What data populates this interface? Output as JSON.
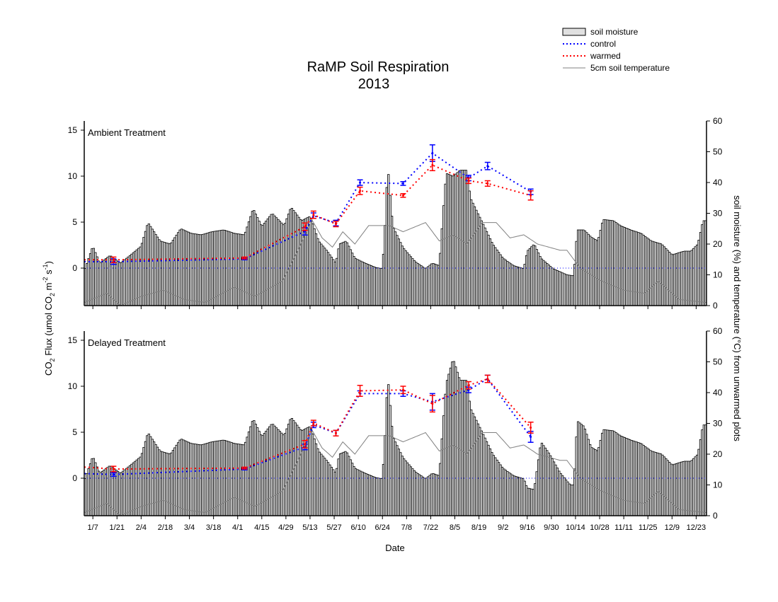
{
  "chart_data": [
    {
      "type": "bar+line",
      "panel_label": "Ambient Treatment",
      "xlim": [
        2,
        363
      ],
      "ylim_left": [
        -4.1,
        16
      ],
      "ylim_right": [
        0,
        60
      ],
      "yticks_left": [
        0,
        5,
        10,
        15
      ],
      "yticks_right": [
        0,
        10,
        20,
        30,
        40,
        50,
        60
      ],
      "flux_days": [
        3,
        19,
        95,
        130,
        135,
        148,
        162,
        187,
        204,
        225,
        236,
        261
      ],
      "series": [
        {
          "name": "control",
          "values": [
            0.7,
            0.7,
            1.0,
            4.0,
            5.7,
            4.9,
            9.3,
            9.2,
            12.5,
            9.8,
            11.1,
            8.3
          ],
          "err": [
            0.2,
            0.3,
            0.1,
            0.4,
            0.3,
            0.3,
            0.3,
            0.2,
            0.9,
            0.3,
            0.4,
            0.3
          ]
        },
        {
          "name": "warmed",
          "values": [
            0.9,
            0.9,
            1.1,
            4.5,
            5.8,
            4.8,
            8.4,
            7.9,
            11.2,
            9.5,
            9.2,
            7.9
          ],
          "err": [
            0.2,
            0.3,
            0.1,
            0.4,
            0.4,
            0.3,
            0.4,
            0.2,
            0.6,
            0.3,
            0.3,
            0.5
          ]
        }
      ],
      "soil_moisture": [
        [
          2,
          11.3
        ],
        [
          7,
          19.3
        ],
        [
          11,
          13.8
        ],
        [
          17,
          16.3
        ],
        [
          23,
          13.8
        ],
        [
          29,
          16.5
        ],
        [
          35,
          19.3
        ],
        [
          39,
          27
        ],
        [
          46,
          21
        ],
        [
          52,
          20
        ],
        [
          58,
          25
        ],
        [
          64,
          23.5
        ],
        [
          70,
          23
        ],
        [
          76,
          24
        ],
        [
          83,
          24.6
        ],
        [
          89,
          23.5
        ],
        [
          95,
          23
        ],
        [
          100,
          31.5
        ],
        [
          105,
          25.7
        ],
        [
          111,
          30
        ],
        [
          118,
          26
        ],
        [
          122,
          32
        ],
        [
          128,
          27.6
        ],
        [
          133,
          29
        ],
        [
          138,
          21
        ],
        [
          143,
          17.7
        ],
        [
          148,
          13.8
        ],
        [
          150,
          20
        ],
        [
          154,
          21
        ],
        [
          159,
          15.4
        ],
        [
          165,
          13.8
        ],
        [
          171,
          12.4
        ],
        [
          175,
          12
        ],
        [
          177,
          30.8
        ],
        [
          178,
          46
        ],
        [
          181,
          25.7
        ],
        [
          187,
          18.8
        ],
        [
          194,
          14.3
        ],
        [
          200,
          12
        ],
        [
          204,
          13.8
        ],
        [
          208,
          13
        ],
        [
          210,
          29
        ],
        [
          212,
          43
        ],
        [
          216,
          42
        ],
        [
          220,
          44
        ],
        [
          224,
          44
        ],
        [
          226,
          35
        ],
        [
          233,
          27
        ],
        [
          239,
          20
        ],
        [
          245,
          15.4
        ],
        [
          251,
          13
        ],
        [
          257,
          12
        ],
        [
          259,
          17.7
        ],
        [
          263,
          20
        ],
        [
          267,
          15.4
        ],
        [
          274,
          12
        ],
        [
          282,
          10
        ],
        [
          286,
          9.7
        ],
        [
          288,
          24.6
        ],
        [
          292,
          24.6
        ],
        [
          296,
          22.3
        ],
        [
          300,
          21
        ],
        [
          303,
          28
        ],
        [
          309,
          27.6
        ],
        [
          313,
          26
        ],
        [
          319,
          24.6
        ],
        [
          325,
          23.5
        ],
        [
          331,
          21
        ],
        [
          337,
          20
        ],
        [
          343,
          16.5
        ],
        [
          350,
          17.7
        ],
        [
          354,
          17.7
        ],
        [
          358,
          20
        ],
        [
          361,
          27.6
        ]
      ],
      "soil_temperature": [
        [
          2,
          1
        ],
        [
          15,
          4
        ],
        [
          23,
          0
        ],
        [
          35,
          3
        ],
        [
          48,
          5
        ],
        [
          60,
          2
        ],
        [
          72,
          1
        ],
        [
          89,
          6
        ],
        [
          101,
          3
        ],
        [
          117,
          8
        ],
        [
          126,
          18
        ],
        [
          134,
          28
        ],
        [
          140,
          22
        ],
        [
          146,
          19
        ],
        [
          152,
          24
        ],
        [
          159,
          20
        ],
        [
          167,
          26
        ],
        [
          179,
          26
        ],
        [
          187,
          24
        ],
        [
          200,
          27
        ],
        [
          208,
          21
        ],
        [
          216,
          23
        ],
        [
          224,
          20
        ],
        [
          233,
          27
        ],
        [
          241,
          27
        ],
        [
          249,
          22
        ],
        [
          257,
          23
        ],
        [
          265,
          20
        ],
        [
          278,
          18
        ],
        [
          282,
          18
        ],
        [
          290,
          12
        ],
        [
          302,
          8
        ],
        [
          315,
          5
        ],
        [
          327,
          4
        ],
        [
          335,
          8
        ],
        [
          347,
          2
        ],
        [
          363,
          1
        ]
      ]
    },
    {
      "type": "bar+line",
      "panel_label": "Delayed Treatment",
      "xlim": [
        2,
        363
      ],
      "ylim_left": [
        -4.1,
        16
      ],
      "ylim_right": [
        0,
        60
      ],
      "yticks_left": [
        0,
        5,
        10,
        15
      ],
      "yticks_right": [
        0,
        10,
        20,
        30,
        40,
        50,
        60
      ],
      "flux_days": [
        3,
        19,
        95,
        130,
        135,
        148,
        162,
        187,
        204,
        225,
        236,
        261
      ],
      "series": [
        {
          "name": "control",
          "values": [
            0.5,
            0.4,
            1.0,
            3.4,
            5.8,
            4.9,
            9.2,
            9.2,
            8.3,
            9.6,
            10.8,
            4.5
          ],
          "err": [
            0.2,
            0.2,
            0.1,
            0.3,
            0.3,
            0.3,
            0.3,
            0.3,
            0.9,
            0.3,
            0.4,
            0.6
          ]
        },
        {
          "name": "warmed",
          "values": [
            1.2,
            1.0,
            1.1,
            3.7,
            6.0,
            4.9,
            9.5,
            9.6,
            8.1,
            10.1,
            10.8,
            5.5
          ],
          "err": [
            0.2,
            0.3,
            0.1,
            0.4,
            0.3,
            0.3,
            0.6,
            0.4,
            0.9,
            0.4,
            0.4,
            0.6
          ]
        }
      ],
      "soil_moisture": [
        [
          2,
          11.3
        ],
        [
          7,
          19.3
        ],
        [
          11,
          13.8
        ],
        [
          17,
          16.3
        ],
        [
          23,
          13.8
        ],
        [
          29,
          16.5
        ],
        [
          35,
          19.3
        ],
        [
          39,
          27
        ],
        [
          46,
          21
        ],
        [
          52,
          20
        ],
        [
          58,
          25
        ],
        [
          64,
          23.5
        ],
        [
          70,
          23
        ],
        [
          76,
          24
        ],
        [
          83,
          24.6
        ],
        [
          89,
          23.5
        ],
        [
          95,
          23
        ],
        [
          100,
          31.5
        ],
        [
          105,
          25.7
        ],
        [
          111,
          30
        ],
        [
          118,
          26
        ],
        [
          122,
          32
        ],
        [
          128,
          27.6
        ],
        [
          133,
          29
        ],
        [
          138,
          21
        ],
        [
          143,
          17.7
        ],
        [
          148,
          13.8
        ],
        [
          150,
          20
        ],
        [
          154,
          21
        ],
        [
          159,
          15.4
        ],
        [
          165,
          13.8
        ],
        [
          171,
          12.4
        ],
        [
          175,
          12
        ],
        [
          177,
          30.8
        ],
        [
          178,
          46
        ],
        [
          181,
          25.7
        ],
        [
          187,
          18.8
        ],
        [
          194,
          14.3
        ],
        [
          200,
          12
        ],
        [
          204,
          13.8
        ],
        [
          208,
          13
        ],
        [
          210,
          29
        ],
        [
          212,
          43
        ],
        [
          216,
          51
        ],
        [
          220,
          44
        ],
        [
          224,
          44
        ],
        [
          226,
          35
        ],
        [
          233,
          27
        ],
        [
          239,
          20
        ],
        [
          245,
          15.4
        ],
        [
          251,
          13
        ],
        [
          257,
          12
        ],
        [
          259,
          9
        ],
        [
          263,
          8.5
        ],
        [
          267,
          24
        ],
        [
          272,
          20
        ],
        [
          278,
          14
        ],
        [
          284,
          10
        ],
        [
          286,
          10
        ],
        [
          288,
          30.8
        ],
        [
          292,
          29
        ],
        [
          296,
          22.3
        ],
        [
          300,
          21
        ],
        [
          303,
          28
        ],
        [
          309,
          27.6
        ],
        [
          313,
          26
        ],
        [
          319,
          24.6
        ],
        [
          325,
          23.5
        ],
        [
          331,
          21
        ],
        [
          337,
          20
        ],
        [
          343,
          16.5
        ],
        [
          350,
          17.7
        ],
        [
          354,
          17.7
        ],
        [
          358,
          20
        ],
        [
          361,
          29.5
        ]
      ],
      "soil_temperature": [
        [
          2,
          1
        ],
        [
          15,
          4
        ],
        [
          23,
          0
        ],
        [
          35,
          3
        ],
        [
          48,
          5
        ],
        [
          60,
          2
        ],
        [
          72,
          1
        ],
        [
          89,
          6
        ],
        [
          101,
          3
        ],
        [
          117,
          8
        ],
        [
          126,
          18
        ],
        [
          134,
          28
        ],
        [
          140,
          22
        ],
        [
          146,
          19
        ],
        [
          152,
          24
        ],
        [
          159,
          20
        ],
        [
          167,
          26
        ],
        [
          179,
          26
        ],
        [
          187,
          24
        ],
        [
          200,
          27
        ],
        [
          208,
          21
        ],
        [
          216,
          23
        ],
        [
          224,
          20
        ],
        [
          233,
          27
        ],
        [
          241,
          27
        ],
        [
          249,
          22
        ],
        [
          257,
          23
        ],
        [
          265,
          20
        ],
        [
          278,
          18
        ],
        [
          282,
          18
        ],
        [
          290,
          12
        ],
        [
          302,
          8
        ],
        [
          315,
          5
        ],
        [
          327,
          4
        ],
        [
          335,
          8
        ],
        [
          347,
          2
        ],
        [
          363,
          1
        ]
      ]
    }
  ],
  "title": "RaMP Soil Respiration",
  "subtitle": "2013",
  "xlabel": "Date",
  "xtick_labels": [
    "1/7",
    "1/21",
    "2/4",
    "2/18",
    "3/4",
    "3/18",
    "4/1",
    "4/15",
    "4/29",
    "5/13",
    "5/27",
    "6/10",
    "6/24",
    "7/8",
    "7/22",
    "8/5",
    "8/19",
    "9/2",
    "9/16",
    "9/30",
    "10/14",
    "10/28",
    "11/11",
    "11/25",
    "12/9",
    "12/23"
  ],
  "xtick_days": [
    7,
    21,
    35,
    49,
    63,
    77,
    91,
    105,
    119,
    133,
    147,
    161,
    175,
    189,
    203,
    217,
    231,
    245,
    259,
    273,
    287,
    301,
    315,
    329,
    343,
    357
  ],
  "ylabel_left": {
    "a": "CO",
    "b": "2",
    "c": " Flux (umol CO",
    "d": "2",
    "e": " m",
    "f": "-2",
    "g": " s",
    "h": "-1",
    "i": ")"
  },
  "ylabel_right": "soil moisture (%) and temperature (°C) from unwarmed plots",
  "legend": {
    "placement": "top-right",
    "items": [
      {
        "label": "soil moisture"
      },
      {
        "label": "control"
      },
      {
        "label": "warmed"
      },
      {
        "label": "5cm soil temperature"
      }
    ]
  },
  "colors": {
    "control": "#0000ff",
    "warmed": "#ff0000",
    "temperature": "#808080",
    "moisture_fill": "#e0e0e0"
  }
}
